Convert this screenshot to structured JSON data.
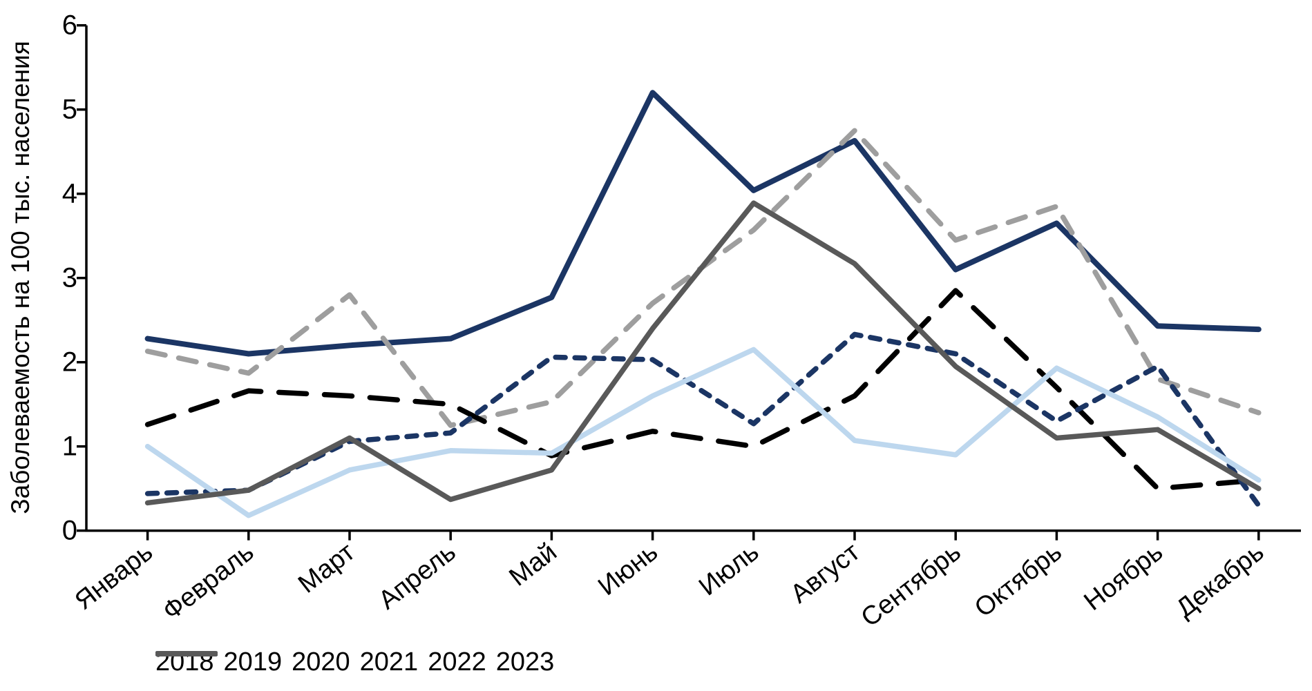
{
  "chart_data": {
    "type": "line",
    "title": "",
    "xlabel": "",
    "ylabel": "Заболеваемость на 100 тыс. населения",
    "ylim": [
      0,
      6
    ],
    "y_ticks": [
      0,
      1,
      2,
      3,
      4,
      5,
      6
    ],
    "grid": false,
    "legend_position": "bottom",
    "categories": [
      "Январь",
      "Февраль",
      "Март",
      "Апрель",
      "Май",
      "Июнь",
      "Июль",
      "Август",
      "Сентябрь",
      "Октябрь",
      "Ноябрь",
      "Декабрь"
    ],
    "series": [
      {
        "name": "2018",
        "color": "#1B3564",
        "dash": "solid",
        "width": 8,
        "values": [
          2.28,
          2.1,
          2.2,
          2.28,
          2.77,
          5.2,
          4.04,
          4.63,
          3.1,
          3.65,
          2.43,
          2.39
        ]
      },
      {
        "name": "2019",
        "color": "#9E9E9E",
        "dash": "26 20",
        "width": 7.5,
        "values": [
          2.13,
          1.87,
          2.8,
          1.25,
          1.53,
          2.7,
          3.57,
          4.75,
          3.45,
          3.85,
          1.8,
          1.4
        ]
      },
      {
        "name": "2020",
        "color": "#000000",
        "dash": "40 26",
        "width": 7.5,
        "values": [
          1.26,
          1.66,
          1.6,
          1.5,
          0.89,
          1.18,
          1.0,
          1.6,
          2.85,
          1.7,
          0.5,
          0.6
        ]
      },
      {
        "name": "2021",
        "color": "#1B3564",
        "dash": "14 14",
        "width": 7.5,
        "values": [
          0.44,
          0.48,
          1.06,
          1.16,
          2.06,
          2.03,
          1.27,
          2.33,
          2.1,
          1.3,
          1.95,
          0.3
        ]
      },
      {
        "name": "2022",
        "color": "#BDD7EE",
        "dash": "solid",
        "width": 7.5,
        "values": [
          1.0,
          0.18,
          0.72,
          0.95,
          0.92,
          1.6,
          2.15,
          1.07,
          0.9,
          1.93,
          1.35,
          0.6
        ]
      },
      {
        "name": "2023",
        "color": "#595959",
        "dash": "solid",
        "width": 7.5,
        "values": [
          0.33,
          0.48,
          1.1,
          0.37,
          0.72,
          2.4,
          3.89,
          3.17,
          1.95,
          1.1,
          1.2,
          0.5
        ]
      }
    ]
  }
}
